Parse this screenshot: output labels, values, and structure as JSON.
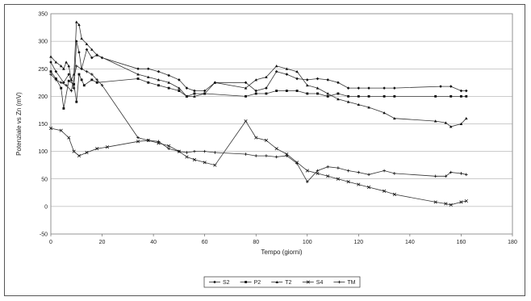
{
  "chart_data": {
    "type": "line",
    "title": "",
    "xlabel": "Tempo (giorni)",
    "ylabel": "Potenziale vs Zn (mV)",
    "xlim": [
      0,
      180
    ],
    "ylim": [
      -50,
      350
    ],
    "x_ticks": [
      "0",
      "20",
      "40",
      "60",
      "80",
      "100",
      "120",
      "140",
      "160",
      "180"
    ],
    "y_ticks": [
      "-50",
      "0",
      "50",
      "100",
      "150",
      "200",
      "250",
      "300",
      "350"
    ],
    "grid": "horizontal",
    "legend_position": "bottom",
    "series": [
      {
        "name": "S2",
        "points": [
          [
            0,
            262
          ],
          [
            2,
            245
          ],
          [
            5,
            225
          ],
          [
            7,
            240
          ],
          [
            9,
            215
          ],
          [
            10,
            300
          ],
          [
            11,
            280
          ],
          [
            12,
            250
          ],
          [
            14,
            285
          ],
          [
            16,
            270
          ],
          [
            18,
            275
          ],
          [
            20,
            270
          ],
          [
            34,
            250
          ],
          [
            38,
            250
          ],
          [
            42,
            245
          ],
          [
            46,
            238
          ],
          [
            50,
            230
          ],
          [
            53,
            215
          ],
          [
            56,
            210
          ],
          [
            60,
            210
          ],
          [
            64,
            225
          ],
          [
            76,
            225
          ],
          [
            80,
            210
          ],
          [
            84,
            215
          ],
          [
            88,
            245
          ],
          [
            92,
            240
          ],
          [
            96,
            232
          ],
          [
            100,
            230
          ],
          [
            104,
            232
          ],
          [
            108,
            230
          ],
          [
            112,
            225
          ],
          [
            116,
            215
          ],
          [
            120,
            215
          ],
          [
            124,
            215
          ],
          [
            130,
            215
          ],
          [
            134,
            215
          ],
          [
            152,
            218
          ],
          [
            156,
            218
          ],
          [
            160,
            210
          ],
          [
            162,
            210
          ]
        ]
      },
      {
        "name": "P2",
        "points": [
          [
            0,
            245
          ],
          [
            2,
            232
          ],
          [
            4,
            215
          ],
          [
            5,
            178
          ],
          [
            7,
            228
          ],
          [
            9,
            222
          ],
          [
            10,
            190
          ],
          [
            11,
            240
          ],
          [
            12,
            230
          ],
          [
            13,
            220
          ],
          [
            16,
            230
          ],
          [
            18,
            225
          ],
          [
            34,
            232
          ],
          [
            38,
            225
          ],
          [
            42,
            220
          ],
          [
            46,
            215
          ],
          [
            50,
            210
          ],
          [
            53,
            200
          ],
          [
            56,
            205
          ],
          [
            60,
            205
          ],
          [
            76,
            200
          ],
          [
            80,
            205
          ],
          [
            84,
            205
          ],
          [
            88,
            210
          ],
          [
            92,
            210
          ],
          [
            96,
            210
          ],
          [
            100,
            205
          ],
          [
            104,
            205
          ],
          [
            108,
            200
          ],
          [
            112,
            205
          ],
          [
            116,
            200
          ],
          [
            120,
            200
          ],
          [
            124,
            200
          ],
          [
            130,
            200
          ],
          [
            134,
            200
          ],
          [
            150,
            200
          ],
          [
            156,
            200
          ],
          [
            160,
            200
          ],
          [
            162,
            200
          ]
        ]
      },
      {
        "name": "T2",
        "points": [
          [
            0,
            272
          ],
          [
            2,
            262
          ],
          [
            4,
            255
          ],
          [
            5,
            250
          ],
          [
            6,
            262
          ],
          [
            7,
            255
          ],
          [
            8,
            230
          ],
          [
            9,
            240
          ],
          [
            10,
            335
          ],
          [
            11,
            330
          ],
          [
            12,
            305
          ],
          [
            14,
            295
          ],
          [
            16,
            285
          ],
          [
            18,
            275
          ],
          [
            34,
            240
          ],
          [
            38,
            235
          ],
          [
            42,
            230
          ],
          [
            46,
            225
          ],
          [
            50,
            215
          ],
          [
            53,
            200
          ],
          [
            56,
            200
          ],
          [
            60,
            205
          ],
          [
            64,
            225
          ],
          [
            76,
            215
          ],
          [
            80,
            230
          ],
          [
            84,
            235
          ],
          [
            88,
            255
          ],
          [
            92,
            250
          ],
          [
            96,
            245
          ],
          [
            100,
            220
          ],
          [
            104,
            215
          ],
          [
            108,
            205
          ],
          [
            112,
            195
          ],
          [
            116,
            190
          ],
          [
            120,
            185
          ],
          [
            124,
            180
          ],
          [
            130,
            170
          ],
          [
            134,
            160
          ],
          [
            150,
            155
          ],
          [
            154,
            152
          ],
          [
            156,
            145
          ],
          [
            160,
            150
          ],
          [
            162,
            160
          ]
        ]
      },
      {
        "name": "S4",
        "points": [
          [
            0,
            142
          ],
          [
            4,
            138
          ],
          [
            7,
            125
          ],
          [
            9,
            100
          ],
          [
            11,
            92
          ],
          [
            14,
            98
          ],
          [
            18,
            105
          ],
          [
            22,
            108
          ],
          [
            34,
            118
          ],
          [
            38,
            120
          ],
          [
            42,
            115
          ],
          [
            46,
            110
          ],
          [
            50,
            100
          ],
          [
            53,
            90
          ],
          [
            56,
            85
          ],
          [
            60,
            80
          ],
          [
            64,
            75
          ],
          [
            76,
            155
          ],
          [
            80,
            125
          ],
          [
            84,
            120
          ],
          [
            88,
            105
          ],
          [
            92,
            95
          ],
          [
            96,
            80
          ],
          [
            100,
            65
          ],
          [
            104,
            60
          ],
          [
            108,
            55
          ],
          [
            112,
            50
          ],
          [
            116,
            45
          ],
          [
            120,
            40
          ],
          [
            124,
            35
          ],
          [
            130,
            28
          ],
          [
            134,
            22
          ],
          [
            150,
            8
          ],
          [
            154,
            5
          ],
          [
            156,
            3
          ],
          [
            160,
            8
          ],
          [
            162,
            10
          ]
        ]
      },
      {
        "name": "TM",
        "points": [
          [
            0,
            240
          ],
          [
            2,
            230
          ],
          [
            4,
            225
          ],
          [
            6,
            220
          ],
          [
            8,
            210
          ],
          [
            10,
            255
          ],
          [
            12,
            250
          ],
          [
            14,
            245
          ],
          [
            16,
            240
          ],
          [
            18,
            230
          ],
          [
            20,
            220
          ],
          [
            34,
            125
          ],
          [
            38,
            120
          ],
          [
            42,
            118
          ],
          [
            46,
            105
          ],
          [
            50,
            100
          ],
          [
            53,
            98
          ],
          [
            56,
            100
          ],
          [
            60,
            100
          ],
          [
            64,
            98
          ],
          [
            76,
            95
          ],
          [
            80,
            92
          ],
          [
            84,
            92
          ],
          [
            88,
            90
          ],
          [
            92,
            92
          ],
          [
            96,
            78
          ],
          [
            100,
            45
          ],
          [
            104,
            65
          ],
          [
            108,
            72
          ],
          [
            112,
            70
          ],
          [
            116,
            65
          ],
          [
            120,
            62
          ],
          [
            124,
            58
          ],
          [
            130,
            65
          ],
          [
            134,
            60
          ],
          [
            150,
            55
          ],
          [
            154,
            55
          ],
          [
            156,
            62
          ],
          [
            160,
            60
          ],
          [
            162,
            58
          ]
        ]
      }
    ]
  }
}
